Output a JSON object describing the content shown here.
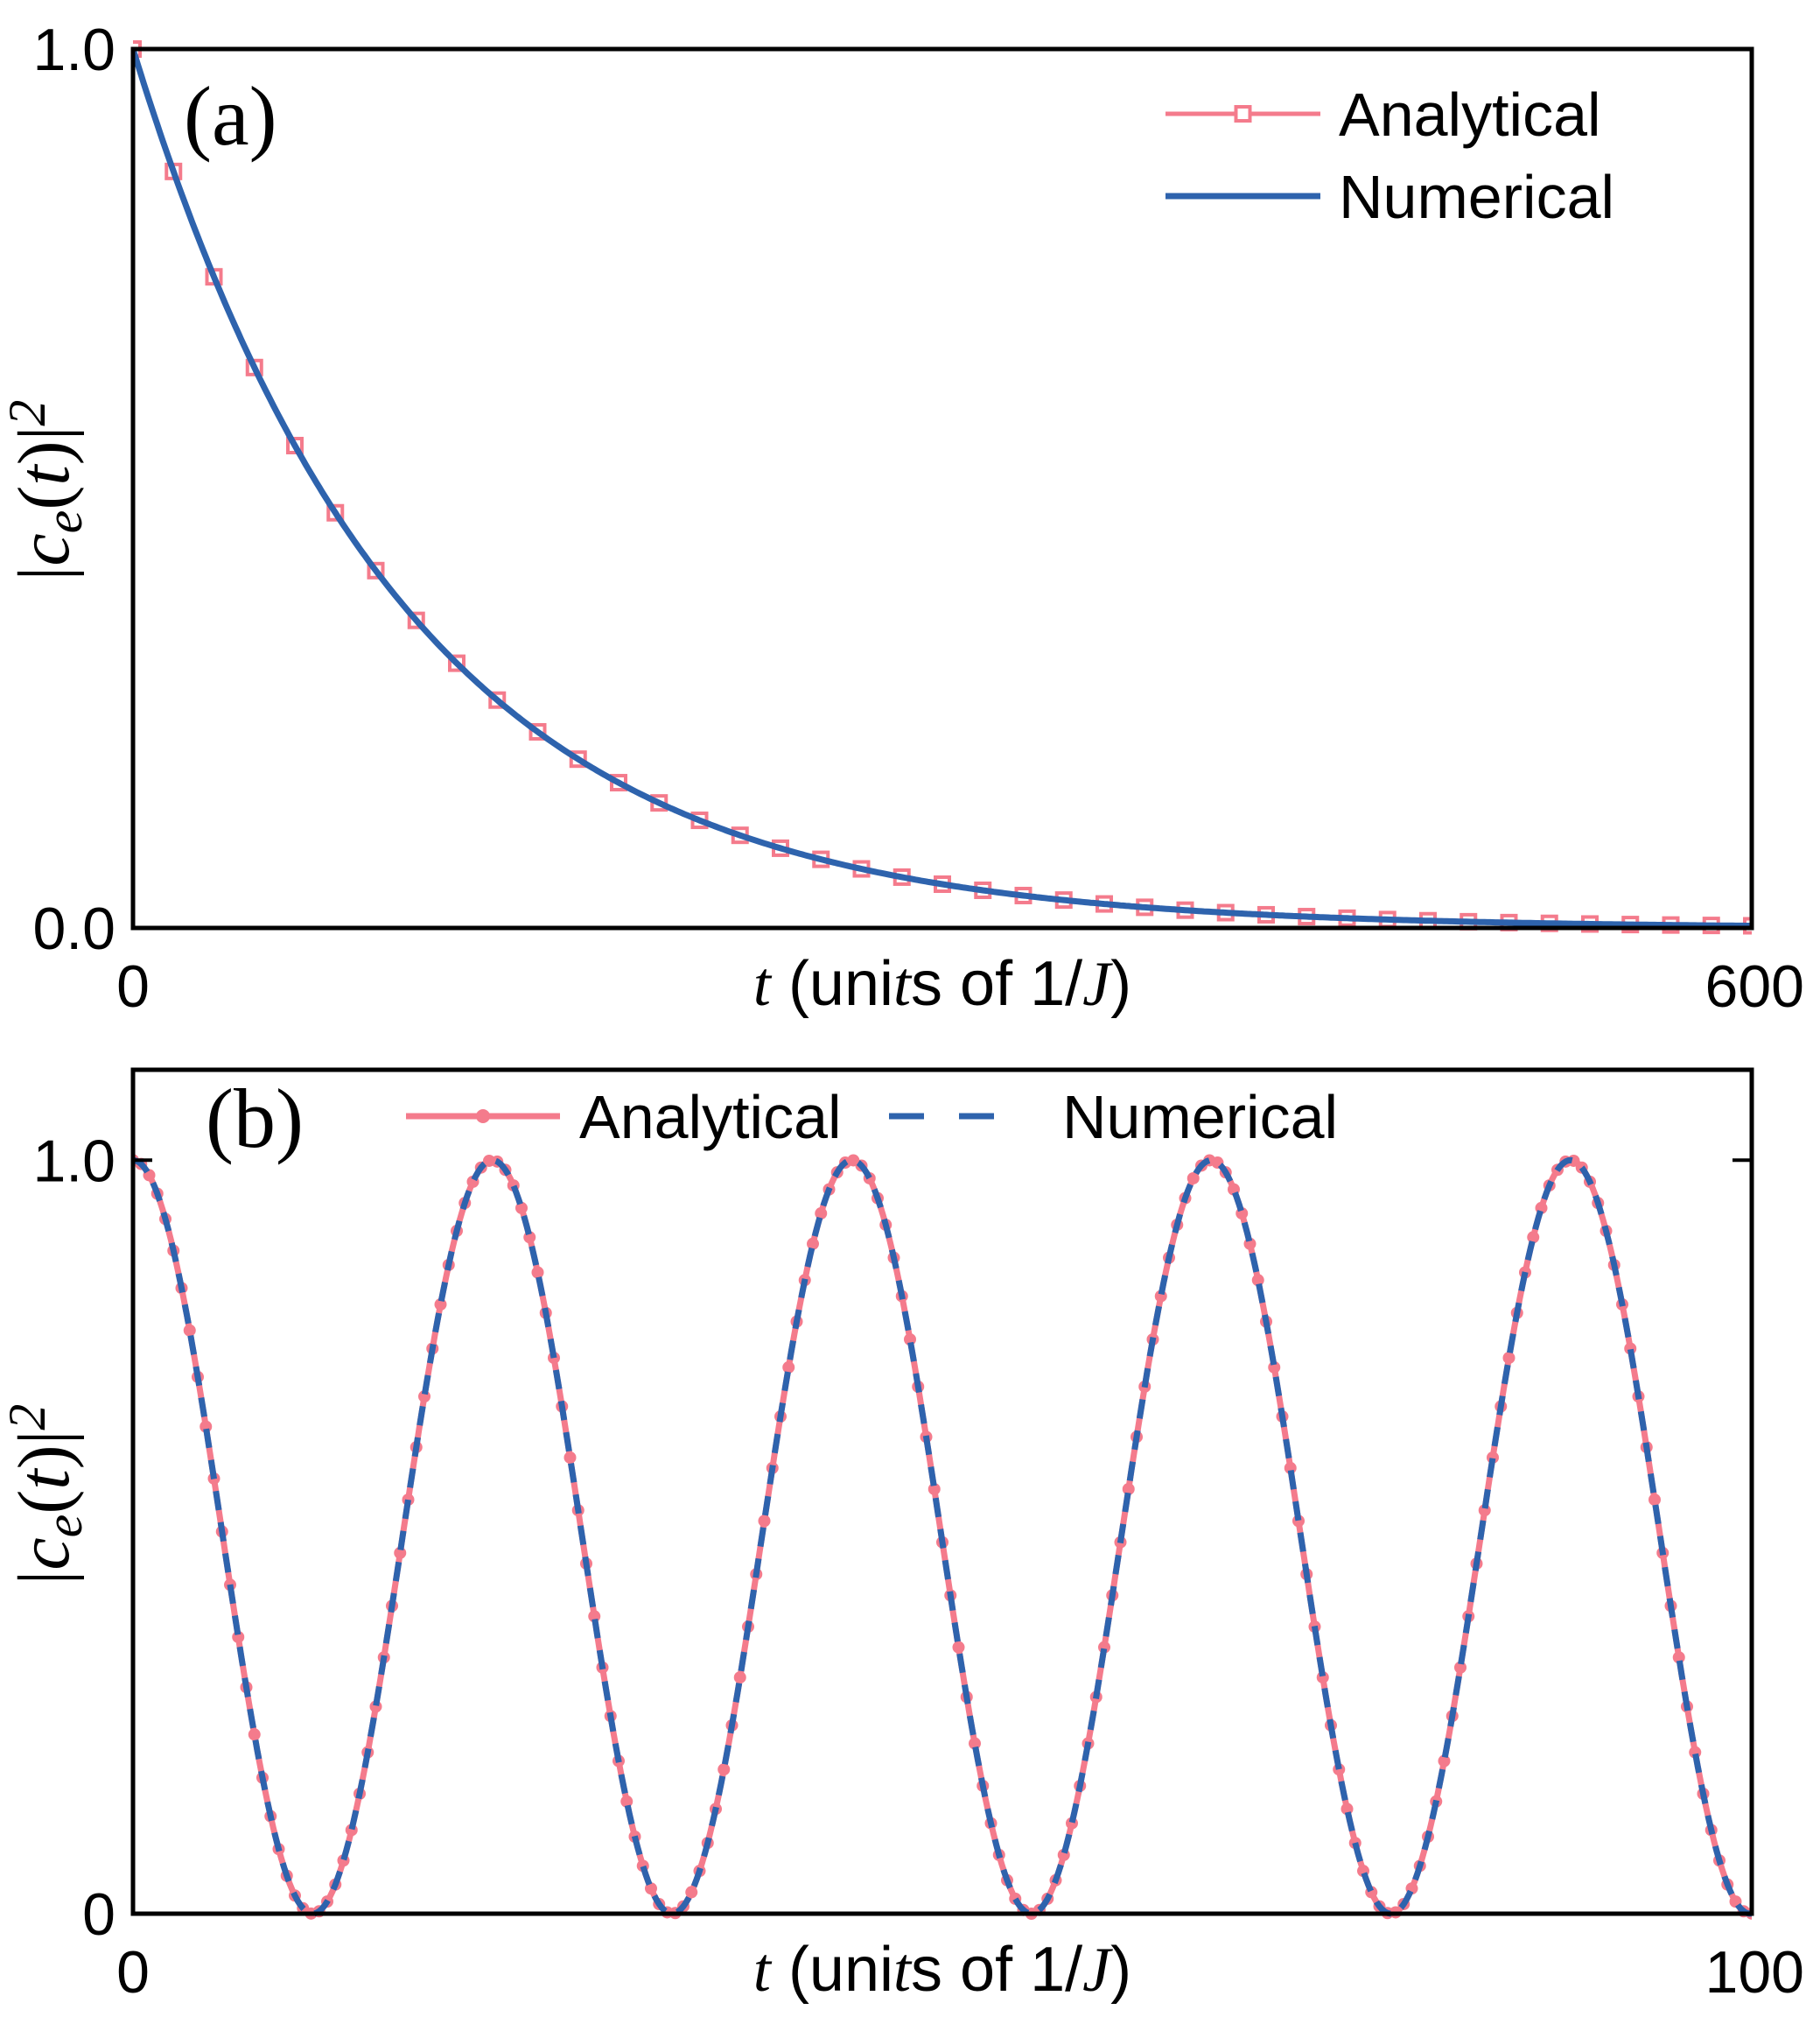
{
  "colors": {
    "analytical": "#f47b8c",
    "numerical": "#2e63ad",
    "axes": "#000000"
  },
  "chart_data": [
    {
      "type": "line",
      "panel_label": "(a)",
      "xlabel": "t (units of 1/J)",
      "ylabel": "|c_e(t)|^2",
      "xlim": [
        0,
        600
      ],
      "ylim": [
        0,
        1.0
      ],
      "xticks": [
        {
          "value": 0,
          "label": "0"
        },
        {
          "value": 600,
          "label": "600"
        }
      ],
      "yticks": [
        {
          "value": 0,
          "label": "0.0"
        },
        {
          "value": 1,
          "label": "1.0"
        }
      ],
      "grid": false,
      "legend_position": "top-right",
      "series": [
        {
          "name": "Analytical",
          "style": "line-with-open-square-markers",
          "function": "exp(-t/100)",
          "marker_x_step": 15
        },
        {
          "name": "Numerical",
          "style": "solid-line",
          "function": "exp(-t/100)"
        }
      ]
    },
    {
      "type": "line",
      "panel_label": "(b)",
      "xlabel": "t (units of 1/J)",
      "ylabel": "|c_e(t)|^2",
      "xlim": [
        0,
        100
      ],
      "ylim": [
        0,
        1.12
      ],
      "xticks": [
        {
          "value": 0,
          "label": "0"
        },
        {
          "value": 100,
          "label": "100"
        }
      ],
      "yticks": [
        {
          "value": 0,
          "label": "0"
        },
        {
          "value": 1,
          "label": "1.0"
        }
      ],
      "grid": false,
      "legend_position": "top",
      "series": [
        {
          "name": "Analytical",
          "style": "line-with-filled-circle-markers",
          "function": "cos^2(pi*t/22.2)",
          "marker_x_step": 0.5
        },
        {
          "name": "Numerical",
          "style": "dashed-line",
          "function": "cos^2(pi*t/22.2)"
        }
      ]
    }
  ]
}
